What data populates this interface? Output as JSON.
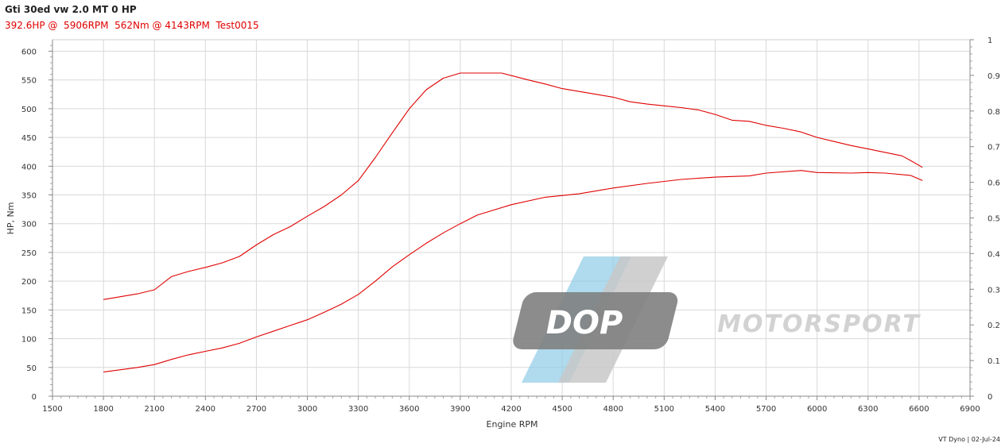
{
  "header": {
    "title": "Gti 30ed vw 2.0 MT 0 HP",
    "subtitle": "392.6HP @  5906RPM  562Nm @ 4143RPM  Test0015"
  },
  "footer": {
    "text": "VT Dyno | 02-Jul-24"
  },
  "logo": {
    "brand": "DOP",
    "tagline": "MOTORSPORT"
  },
  "colors": {
    "curve": "#e00000",
    "grid": "#d9d9d9",
    "axis": "#888888"
  },
  "chart_data": {
    "type": "line",
    "xlabel": "Engine RPM",
    "ylabel": "HP, Nm",
    "xlim": [
      1500,
      6900
    ],
    "ylim": [
      0,
      620
    ],
    "y2lim": [
      0,
      1
    ],
    "x_ticks": [
      1500,
      1800,
      2100,
      2400,
      2700,
      3000,
      3300,
      3600,
      3900,
      4200,
      4500,
      4800,
      5100,
      5400,
      5700,
      6000,
      6300,
      6600,
      6900
    ],
    "y_ticks": [
      0,
      50,
      100,
      150,
      200,
      250,
      300,
      350,
      400,
      450,
      500,
      550,
      600
    ],
    "y2_ticks": [
      0,
      0.1,
      0.2,
      0.3,
      0.4,
      0.5,
      0.6,
      0.7,
      0.8,
      0.9,
      1
    ],
    "grid": true,
    "series": [
      {
        "x": [
          1800,
          1900,
          2000,
          2100,
          2200,
          2300,
          2400,
          2500,
          2600,
          2700,
          2800,
          2900,
          3000,
          3100,
          3200,
          3300,
          3400,
          3500,
          3600,
          3700,
          3800,
          3900,
          4000,
          4143,
          4300,
          4400,
          4500,
          4600,
          4700,
          4800,
          4900,
          5000,
          5100,
          5200,
          5300,
          5400,
          5500,
          5600,
          5700,
          5800,
          5900,
          6000,
          6100,
          6200,
          6300,
          6400,
          6500,
          6550,
          6620
        ],
        "y": [
          168,
          173,
          178,
          185,
          208,
          217,
          224,
          232,
          243,
          263,
          281,
          295,
          313,
          330,
          350,
          375,
          415,
          458,
          500,
          533,
          553,
          562,
          562,
          562,
          550,
          543,
          535,
          530,
          525,
          520,
          512,
          508,
          505,
          502,
          498,
          490,
          480,
          478,
          471,
          466,
          460,
          450,
          443,
          436,
          430,
          424,
          418,
          410,
          398
        ]
      },
      {
        "x": [
          1800,
          1900,
          2000,
          2100,
          2200,
          2300,
          2400,
          2500,
          2600,
          2700,
          2800,
          2900,
          3000,
          3100,
          3200,
          3300,
          3400,
          3500,
          3600,
          3700,
          3800,
          3900,
          4000,
          4200,
          4400,
          4600,
          4800,
          5000,
          5200,
          5400,
          5600,
          5700,
          5906,
          6000,
          6200,
          6300,
          6400,
          6550,
          6620
        ],
        "y": [
          42,
          46,
          50,
          55,
          64,
          72,
          78,
          84,
          92,
          103,
          113,
          123,
          133,
          146,
          160,
          177,
          200,
          225,
          246,
          266,
          284,
          300,
          315,
          333,
          346,
          352,
          362,
          370,
          377,
          381,
          383,
          388,
          392.6,
          389,
          388,
          389,
          388,
          384,
          375
        ]
      }
    ]
  }
}
